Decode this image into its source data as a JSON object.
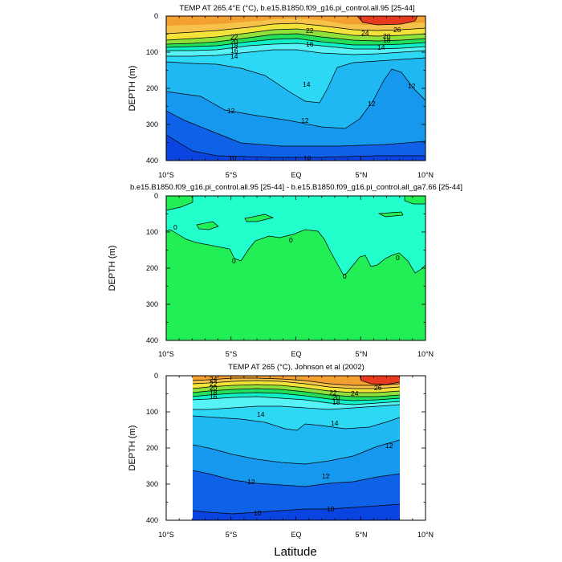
{
  "xlabel": "Latitude",
  "colors": {
    "warm_orange": "#F4A030",
    "light_orange": "#F7C24A",
    "red": "#E83A1E",
    "yellow": "#F2E23A",
    "lime": "#8FE03A",
    "green": "#22E05A",
    "aqua": "#11F0C8",
    "cyan_light": "#57F2F5",
    "cyan": "#2DD8F5",
    "sky": "#1FB8F2",
    "blue_mid": "#1598EE",
    "blue_dark": "#0F62E8",
    "blue_deep": "#0A44E0",
    "diff_green": "#22EE55",
    "diff_aqua": "#22FFCC"
  },
  "chart_data": [
    {
      "type": "contour",
      "title": "TEMP AT 265.4°E (°C), b.e15.B1850.f09_g16.pi_control.all.95 [25-44]",
      "ylabel": "DEPTH (m)",
      "xlim": [
        -10,
        10
      ],
      "ylim": [
        400,
        0
      ],
      "x_ticks": [
        "10°S",
        "5°S",
        "EQ",
        "5°N",
        "10°N"
      ],
      "y_ticks": [
        "0",
        "100",
        "200",
        "300",
        "400"
      ],
      "contour_labels": [
        "26",
        "24",
        "22",
        "22",
        "20",
        "20",
        "18",
        "18",
        "16",
        "16",
        "14",
        "14",
        "14",
        "12",
        "12",
        "12",
        "12",
        "10",
        "10"
      ]
    },
    {
      "type": "contour",
      "title": "b.e15.B1850.f09_g16.pi_control.all.95 [25-44] - b.e15.B1850.f09_g16.pi_control.all_ga7.66 [25-44]",
      "ylabel": "DEPTH (m)",
      "xlim": [
        -10,
        10
      ],
      "ylim": [
        400,
        0
      ],
      "x_ticks": [
        "10°S",
        "5°S",
        "EQ",
        "5°N",
        "10°N"
      ],
      "y_ticks": [
        "0",
        "100",
        "200",
        "300",
        "400"
      ],
      "contour_labels": [
        "0",
        "0",
        "0",
        "0",
        "0"
      ]
    },
    {
      "type": "contour",
      "title": "TEMP AT 265 (°C), Johnson et al (2002)",
      "ylabel": "DEPTH (m)",
      "xlim": [
        -10,
        10
      ],
      "ylim": [
        400,
        0
      ],
      "x_ticks": [
        "10°S",
        "5°S",
        "EQ",
        "5°N",
        "10°N"
      ],
      "y_ticks": [
        "0",
        "100",
        "200",
        "300",
        "400"
      ],
      "contour_labels": [
        "24",
        "22",
        "20",
        "18",
        "16",
        "22",
        "20",
        "18",
        "24",
        "26",
        "14",
        "14",
        "12",
        "12",
        "12",
        "10",
        "10"
      ]
    }
  ]
}
